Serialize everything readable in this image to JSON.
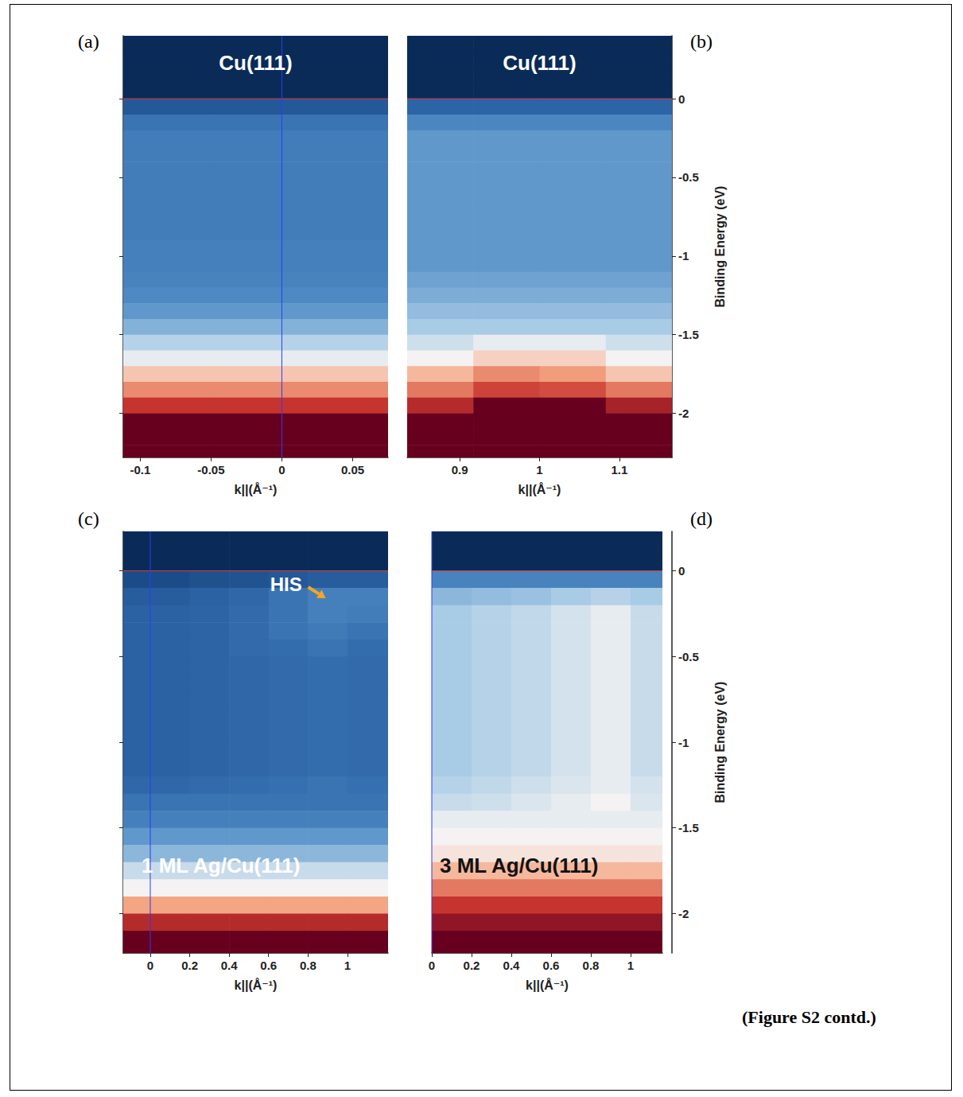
{
  "caption": "(Figure S2 contd.)",
  "chart_data": [
    {
      "type": "heatmap",
      "label": "(a)",
      "title": "Cu(111)",
      "x_label": "k||(Å⁻¹)",
      "xlim": [
        -0.112,
        0.075
      ],
      "xticks": [
        -0.1,
        -0.05,
        0,
        0.05
      ],
      "ylim": [
        -2.28,
        0.4
      ],
      "yticks": [
        -2,
        -1.5,
        -1,
        -0.5,
        0
      ],
      "tick_labels": "x",
      "grid": false,
      "zlim": [
        0,
        1
      ],
      "hlines": [
        0
      ],
      "vlines": [
        0
      ],
      "x_bins": [
        -0.112,
        -0.05,
        0,
        0.075
      ],
      "y_bins": [
        0.4,
        0.3,
        0.2,
        0.1,
        0,
        -0.1,
        -0.2,
        -0.3,
        -0.4,
        -0.5,
        -0.6,
        -0.7,
        -0.8,
        -0.9,
        -1,
        -1.1,
        -1.2,
        -1.3,
        -1.4,
        -1.5,
        -1.6,
        -1.7,
        -1.8,
        -1.9,
        -2,
        -2.1,
        -2.2,
        -2.3
      ],
      "values": [
        [
          0,
          0,
          0
        ],
        [
          0,
          0,
          0
        ],
        [
          0,
          0,
          0
        ],
        [
          0,
          0,
          0
        ],
        [
          0.2,
          0.2,
          0.2
        ],
        [
          0.3,
          0.3,
          0.3
        ],
        [
          0.33,
          0.33,
          0.33
        ],
        [
          0.33,
          0.33,
          0.33
        ],
        [
          0.33,
          0.33,
          0.33
        ],
        [
          0.33,
          0.33,
          0.33
        ],
        [
          0.33,
          0.33,
          0.33
        ],
        [
          0.33,
          0.33,
          0.33
        ],
        [
          0.33,
          0.33,
          0.33
        ],
        [
          0.34,
          0.34,
          0.34
        ],
        [
          0.34,
          0.34,
          0.34
        ],
        [
          0.35,
          0.35,
          0.35
        ],
        [
          0.37,
          0.37,
          0.37
        ],
        [
          0.4,
          0.4,
          0.4
        ],
        [
          0.45,
          0.45,
          0.45
        ],
        [
          0.52,
          0.52,
          0.52
        ],
        [
          0.6,
          0.6,
          0.6
        ],
        [
          0.7,
          0.7,
          0.7
        ],
        [
          0.78,
          0.78,
          0.78
        ],
        [
          0.88,
          0.88,
          0.88
        ],
        [
          1,
          1,
          1
        ],
        [
          1,
          1,
          1
        ],
        [
          1,
          1,
          1
        ]
      ]
    },
    {
      "type": "heatmap",
      "label": "(b)",
      "title": "Cu(111)",
      "x_label": "k||(Å⁻¹)",
      "y_label": "Binding Energy (eV)",
      "xlim": [
        0.834,
        1.166
      ],
      "xticks": [
        0.9,
        1,
        1.1
      ],
      "ylim": [
        -2.28,
        0.4
      ],
      "yticks": [
        -2,
        -1.5,
        -1,
        -0.5,
        0
      ],
      "grid": false,
      "zlim": [
        0,
        1
      ],
      "hlines": [
        0
      ],
      "x_bins": [
        0.834,
        0.917,
        1.0,
        1.083,
        1.166
      ],
      "y_bins": [
        0.4,
        0.3,
        0.2,
        0.1,
        0,
        -0.1,
        -0.2,
        -0.3,
        -0.4,
        -0.5,
        -0.6,
        -0.7,
        -0.8,
        -0.9,
        -1,
        -1.1,
        -1.2,
        -1.3,
        -1.4,
        -1.5,
        -1.6,
        -1.7,
        -1.8,
        -1.9,
        -2,
        -2.1,
        -2.2,
        -2.3
      ],
      "values": [
        [
          0,
          0,
          0,
          0
        ],
        [
          0,
          0,
          0,
          0
        ],
        [
          0,
          0,
          0,
          0
        ],
        [
          0,
          0,
          0,
          0
        ],
        [
          0.25,
          0.25,
          0.25,
          0.25
        ],
        [
          0.36,
          0.36,
          0.36,
          0.36
        ],
        [
          0.4,
          0.4,
          0.4,
          0.4
        ],
        [
          0.4,
          0.4,
          0.4,
          0.4
        ],
        [
          0.4,
          0.4,
          0.4,
          0.4
        ],
        [
          0.4,
          0.4,
          0.4,
          0.4
        ],
        [
          0.4,
          0.4,
          0.4,
          0.4
        ],
        [
          0.4,
          0.4,
          0.4,
          0.4
        ],
        [
          0.4,
          0.4,
          0.4,
          0.4
        ],
        [
          0.4,
          0.4,
          0.4,
          0.4
        ],
        [
          0.4,
          0.4,
          0.4,
          0.4
        ],
        [
          0.42,
          0.42,
          0.42,
          0.42
        ],
        [
          0.44,
          0.44,
          0.44,
          0.44
        ],
        [
          0.47,
          0.47,
          0.47,
          0.47
        ],
        [
          0.5,
          0.5,
          0.5,
          0.5
        ],
        [
          0.56,
          0.6,
          0.6,
          0.56
        ],
        [
          0.62,
          0.68,
          0.68,
          0.62
        ],
        [
          0.72,
          0.78,
          0.76,
          0.7
        ],
        [
          0.8,
          0.86,
          0.85,
          0.8
        ],
        [
          0.9,
          1,
          1,
          0.92
        ],
        [
          1,
          1,
          1,
          1
        ],
        [
          1,
          1,
          1,
          1
        ],
        [
          1,
          1,
          1,
          1
        ]
      ]
    },
    {
      "type": "heatmap",
      "label": "(c)",
      "title": "1 ML Ag/Cu(111)",
      "x_label": "k||(Å⁻¹)",
      "xlim": [
        -0.137,
        1.206
      ],
      "xticks": [
        0,
        0.2,
        0.4,
        0.6,
        0.8,
        1
      ],
      "ylim": [
        -2.23,
        0.23
      ],
      "yticks": [
        -2,
        -1.5,
        -1,
        -0.5,
        0
      ],
      "tick_labels": "x",
      "grid": false,
      "zlim": [
        0,
        1
      ],
      "hlines": [
        0
      ],
      "vlines": [
        0
      ],
      "annotations": [
        {
          "text": "HIS",
          "x": 0.89,
          "y": -0.16
        }
      ],
      "x_bins": [
        -0.137,
        0,
        0.2,
        0.4,
        0.6,
        0.8,
        1.0,
        1.206
      ],
      "y_bins": [
        0.4,
        0.3,
        0.2,
        0.1,
        0,
        -0.1,
        -0.2,
        -0.3,
        -0.4,
        -0.5,
        -0.6,
        -0.7,
        -0.8,
        -0.9,
        -1,
        -1.1,
        -1.2,
        -1.3,
        -1.4,
        -1.5,
        -1.6,
        -1.7,
        -1.8,
        -1.9,
        -2,
        -2.1,
        -2.2,
        -2.3
      ],
      "values": [
        [
          0,
          0,
          0,
          0,
          0,
          0,
          0
        ],
        [
          0,
          0,
          0,
          0,
          0,
          0,
          0
        ],
        [
          0,
          0,
          0,
          0,
          0,
          0,
          0
        ],
        [
          0,
          0,
          0,
          0,
          0,
          0,
          0
        ],
        [
          0.15,
          0.15,
          0.17,
          0.18,
          0.2,
          0.22,
          0.22
        ],
        [
          0.22,
          0.22,
          0.24,
          0.26,
          0.3,
          0.34,
          0.34
        ],
        [
          0.24,
          0.24,
          0.25,
          0.27,
          0.3,
          0.34,
          0.33
        ],
        [
          0.24,
          0.24,
          0.25,
          0.27,
          0.3,
          0.32,
          0.3
        ],
        [
          0.24,
          0.24,
          0.25,
          0.27,
          0.28,
          0.3,
          0.28
        ],
        [
          0.24,
          0.24,
          0.25,
          0.26,
          0.27,
          0.28,
          0.27
        ],
        [
          0.24,
          0.24,
          0.25,
          0.26,
          0.27,
          0.28,
          0.27
        ],
        [
          0.24,
          0.24,
          0.25,
          0.26,
          0.27,
          0.28,
          0.27
        ],
        [
          0.24,
          0.24,
          0.25,
          0.26,
          0.27,
          0.28,
          0.27
        ],
        [
          0.24,
          0.24,
          0.25,
          0.26,
          0.27,
          0.28,
          0.27
        ],
        [
          0.24,
          0.24,
          0.25,
          0.26,
          0.27,
          0.28,
          0.27
        ],
        [
          0.24,
          0.24,
          0.25,
          0.26,
          0.27,
          0.28,
          0.27
        ],
        [
          0.26,
          0.26,
          0.27,
          0.28,
          0.29,
          0.3,
          0.29
        ],
        [
          0.3,
          0.3,
          0.3,
          0.3,
          0.3,
          0.3,
          0.3
        ],
        [
          0.34,
          0.34,
          0.34,
          0.34,
          0.34,
          0.34,
          0.34
        ],
        [
          0.4,
          0.4,
          0.4,
          0.4,
          0.4,
          0.4,
          0.4
        ],
        [
          0.46,
          0.46,
          0.46,
          0.46,
          0.46,
          0.46,
          0.46
        ],
        [
          0.55,
          0.55,
          0.55,
          0.55,
          0.55,
          0.55,
          0.55
        ],
        [
          0.62,
          0.62,
          0.62,
          0.62,
          0.62,
          0.62,
          0.62
        ],
        [
          0.75,
          0.75,
          0.75,
          0.75,
          0.75,
          0.75,
          0.75
        ],
        [
          0.9,
          0.9,
          0.9,
          0.9,
          0.9,
          0.9,
          0.9
        ],
        [
          1,
          1,
          1,
          1,
          1,
          1,
          1
        ],
        [
          1,
          1,
          1,
          1,
          1,
          1,
          1
        ]
      ]
    },
    {
      "type": "heatmap",
      "label": "(d)",
      "title": "3 ML Ag/Cu(111)",
      "x_label": "k||(Å⁻¹)",
      "y_label": "Binding Energy (eV)",
      "xlim": [
        0,
        1.16
      ],
      "xticks": [
        0,
        0.2,
        0.4,
        0.6,
        0.8,
        1
      ],
      "ylim": [
        -2.23,
        0.23
      ],
      "yticks": [
        -2,
        -1.5,
        -1,
        -0.5,
        0
      ],
      "grid": false,
      "zlim": [
        0,
        1
      ],
      "hlines": [
        0
      ],
      "vlines": [
        0
      ],
      "x_bins": [
        0,
        0.2,
        0.4,
        0.6,
        0.8,
        1.0,
        1.16
      ],
      "y_bins": [
        0.4,
        0.3,
        0.2,
        0.1,
        0,
        -0.1,
        -0.2,
        -0.3,
        -0.4,
        -0.5,
        -0.6,
        -0.7,
        -0.8,
        -0.9,
        -1,
        -1.1,
        -1.2,
        -1.3,
        -1.4,
        -1.5,
        -1.6,
        -1.7,
        -1.8,
        -1.9,
        -2,
        -2.1,
        -2.2,
        -2.3
      ],
      "values": [
        [
          0,
          0,
          0,
          0,
          0,
          0
        ],
        [
          0,
          0,
          0,
          0,
          0,
          0
        ],
        [
          0,
          0,
          0,
          0,
          0,
          0
        ],
        [
          0,
          0,
          0,
          0,
          0,
          0
        ],
        [
          0.35,
          0.35,
          0.35,
          0.35,
          0.35,
          0.35
        ],
        [
          0.46,
          0.47,
          0.48,
          0.5,
          0.52,
          0.5
        ],
        [
          0.5,
          0.52,
          0.54,
          0.57,
          0.6,
          0.55
        ],
        [
          0.5,
          0.52,
          0.54,
          0.57,
          0.6,
          0.55
        ],
        [
          0.5,
          0.52,
          0.54,
          0.57,
          0.6,
          0.55
        ],
        [
          0.5,
          0.52,
          0.54,
          0.57,
          0.6,
          0.55
        ],
        [
          0.5,
          0.52,
          0.54,
          0.57,
          0.6,
          0.55
        ],
        [
          0.5,
          0.52,
          0.54,
          0.57,
          0.6,
          0.55
        ],
        [
          0.5,
          0.52,
          0.54,
          0.57,
          0.6,
          0.55
        ],
        [
          0.5,
          0.52,
          0.54,
          0.57,
          0.6,
          0.55
        ],
        [
          0.5,
          0.52,
          0.54,
          0.57,
          0.6,
          0.55
        ],
        [
          0.5,
          0.52,
          0.54,
          0.57,
          0.6,
          0.55
        ],
        [
          0.52,
          0.54,
          0.56,
          0.58,
          0.6,
          0.57
        ],
        [
          0.55,
          0.56,
          0.58,
          0.6,
          0.62,
          0.58
        ],
        [
          0.6,
          0.6,
          0.6,
          0.6,
          0.6,
          0.6
        ],
        [
          0.62,
          0.62,
          0.62,
          0.62,
          0.62,
          0.62
        ],
        [
          0.65,
          0.65,
          0.65,
          0.65,
          0.65,
          0.65
        ],
        [
          0.72,
          0.72,
          0.72,
          0.72,
          0.72,
          0.72
        ],
        [
          0.8,
          0.8,
          0.8,
          0.8,
          0.8,
          0.8
        ],
        [
          0.88,
          0.88,
          0.88,
          0.88,
          0.88,
          0.88
        ],
        [
          0.95,
          0.95,
          0.95,
          0.95,
          0.95,
          0.95
        ],
        [
          1,
          1,
          1,
          1,
          1,
          1
        ],
        [
          1,
          1,
          1,
          1,
          1,
          1
        ]
      ]
    }
  ]
}
